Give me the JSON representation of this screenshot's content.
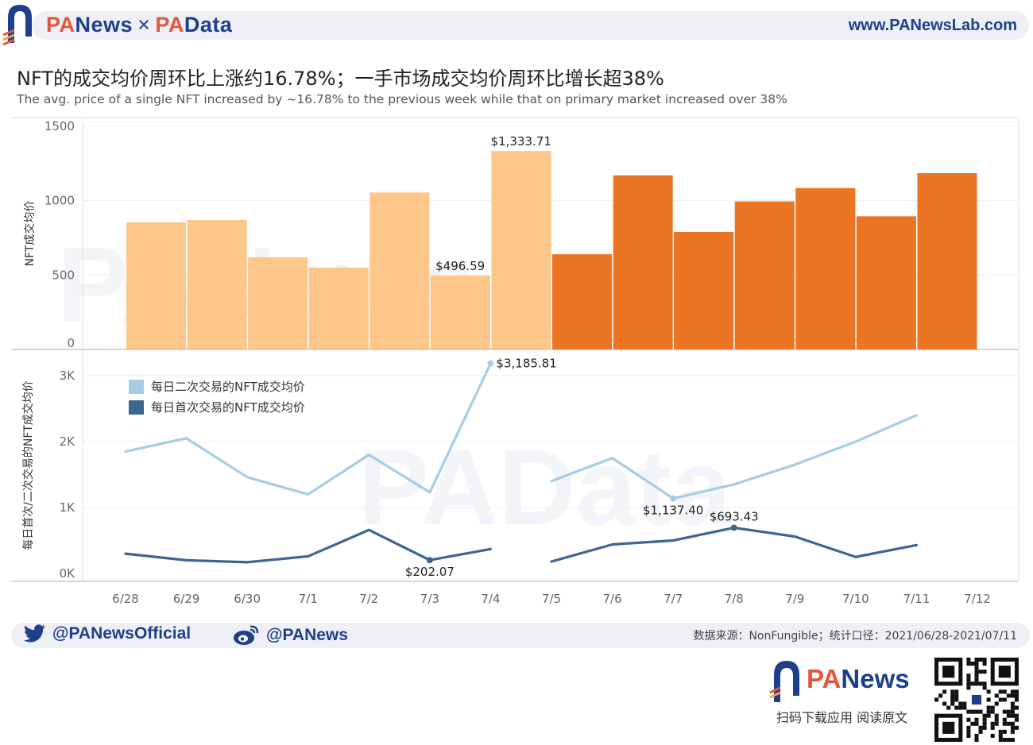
{
  "header": {
    "brand_left_accent": "PA",
    "brand_left_rest": "News",
    "brand_separator": "×",
    "brand_right_accent": "PA",
    "brand_right_rest": "Data",
    "website": "www.PANewsLab.com",
    "logo_icon": "panews-logo-icon"
  },
  "title": "NFT的成交均价周环比上涨约16.78%；一手市场成交均价周环比增长超38%",
  "subtitle": "The avg. price of a single NFT increased by ~16.78% to the previous week while that on primary market increased over 38%",
  "watermarks": [
    "PANews",
    "PAData"
  ],
  "colors": {
    "bar_light": "#fdc68a",
    "bar_dark": "#ec7524",
    "line_secondary": "#a6cde3",
    "line_primary": "#3f6690",
    "brand_blue": "#1d3f8c",
    "brand_accent": "#e2573e"
  },
  "chart_data": [
    {
      "type": "bar",
      "ylabel": "NFT成交均价",
      "ylim": [
        0,
        1500
      ],
      "yticks": [
        0,
        500,
        1000,
        1500
      ],
      "categories": [
        "6/28",
        "6/29",
        "6/30",
        "7/1",
        "7/2",
        "7/3",
        "7/4",
        "7/5",
        "7/6",
        "7/7",
        "7/8",
        "7/9",
        "7/10",
        "7/11"
      ],
      "values": [
        855,
        870,
        620,
        550,
        1055,
        496.59,
        1333.71,
        640,
        1170,
        790,
        995,
        1085,
        895,
        1185
      ],
      "bar_color_groups": [
        "light",
        "light",
        "light",
        "light",
        "light",
        "light",
        "light",
        "dark",
        "dark",
        "dark",
        "dark",
        "dark",
        "dark",
        "dark"
      ],
      "data_labels": [
        {
          "category": "7/3",
          "text": "$496.59"
        },
        {
          "category": "7/4",
          "text": "$1,333.71"
        }
      ],
      "grid": true
    },
    {
      "type": "line",
      "ylabel": "每日首次/二次交易的NFT成交均价",
      "ylim": [
        0,
        3000
      ],
      "ytick_values": [
        0,
        1000,
        2000,
        3000
      ],
      "ytick_labels": [
        "0K",
        "1K",
        "2K",
        "3K"
      ],
      "x": [
        "6/28",
        "6/29",
        "6/30",
        "7/1",
        "7/2",
        "7/3",
        "7/4",
        "7/5",
        "7/6",
        "7/7",
        "7/8",
        "7/9",
        "7/10",
        "7/11",
        "7/12"
      ],
      "legend_position": "top-left",
      "series": [
        {
          "name": "每日二次交易的NFT成交均价",
          "color_key": "line_secondary",
          "segments": [
            {
              "x": [
                "6/28",
                "6/29",
                "6/30",
                "7/1",
                "7/2",
                "7/3",
                "7/4"
              ],
              "values": [
                1850,
                2050,
                1460,
                1200,
                1800,
                1230,
                3185.81
              ]
            },
            {
              "x": [
                "7/5",
                "7/6",
                "7/7",
                "7/8",
                "7/9",
                "7/10",
                "7/11"
              ],
              "values": [
                1400,
                1750,
                1137.4,
                1350,
                1650,
                2000,
                2400
              ]
            }
          ]
        },
        {
          "name": "每日首次交易的NFT成交均价",
          "color_key": "line_primary",
          "segments": [
            {
              "x": [
                "6/28",
                "6/29",
                "6/30",
                "7/1",
                "7/2",
                "7/3",
                "7/4"
              ],
              "values": [
                300,
                200,
                170,
                260,
                660,
                202.07,
                370
              ]
            },
            {
              "x": [
                "7/5",
                "7/6",
                "7/7",
                "7/8",
                "7/9",
                "7/10",
                "7/11"
              ],
              "values": [
                180,
                440,
                500,
                693.43,
                560,
                250,
                430
              ]
            }
          ]
        }
      ],
      "data_labels": [
        {
          "series": 0,
          "x": "7/4",
          "text": "$3,185.81"
        },
        {
          "series": 0,
          "x": "7/7",
          "text": "$1,137.40"
        },
        {
          "series": 1,
          "x": "7/3",
          "text": "$202.07"
        },
        {
          "series": 1,
          "x": "7/8",
          "text": "$693.43"
        }
      ],
      "grid": true
    }
  ],
  "footer": {
    "twitter_handle": "@PANewsOfficial",
    "twitter_icon": "twitter-icon",
    "weibo_handle": "@PANews",
    "weibo_icon": "weibo-icon",
    "source": "数据来源：NonFungible；统计口径：2021/06/28-2021/07/11",
    "brand_accent": "PA",
    "brand_rest": "News",
    "caption": "扫码下载应用  阅读原文",
    "qr_icon": "qr-code-icon"
  }
}
